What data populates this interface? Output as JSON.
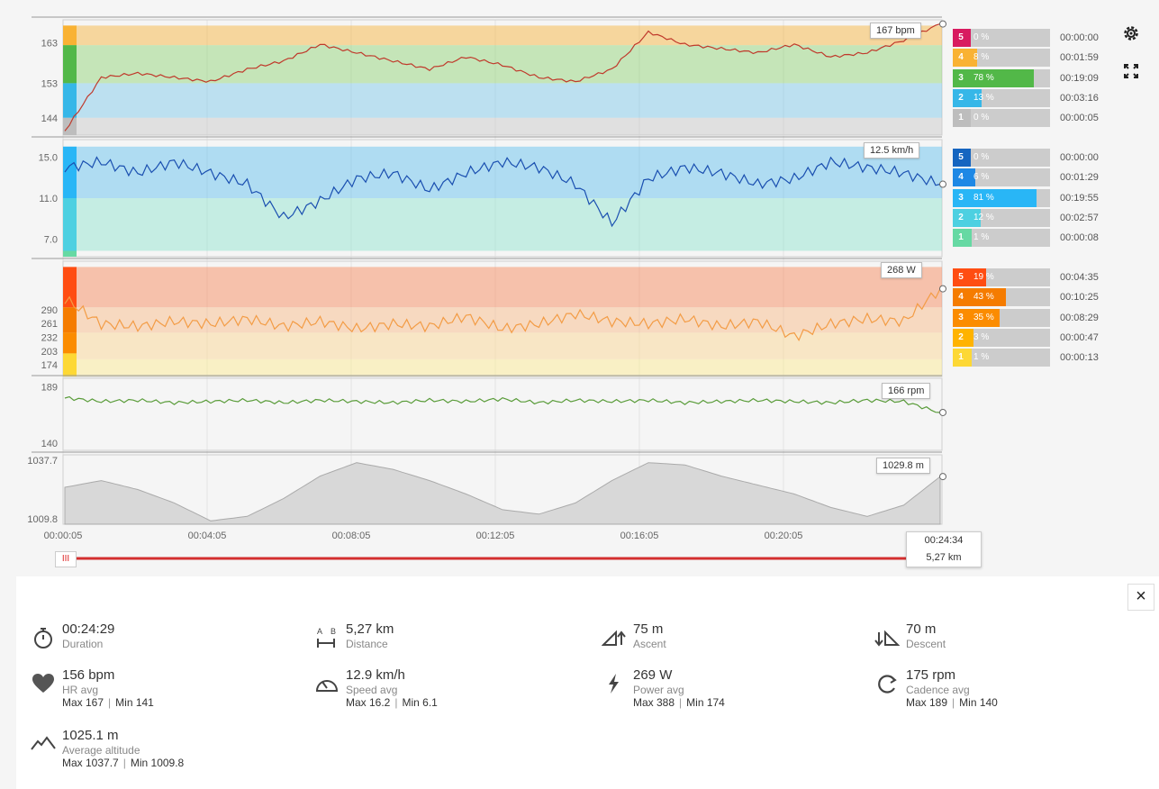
{
  "colors": {
    "hr_zone_5": "#d81b60",
    "hr_zone_4": "#f9b233",
    "hr_zone_3": "#52b848",
    "hr_zone_2": "#36b7e8",
    "hr_zone_1": "#bdbdbd",
    "speed_zone_5": "#1565c0",
    "speed_zone_4": "#1e88e5",
    "speed_zone_3": "#29b6f6",
    "speed_zone_2": "#4dd0e1",
    "speed_zone_1": "#66d9a3",
    "power_zone_5": "#ff4d12",
    "power_zone_4": "#f57c00",
    "power_zone_3": "#fb8c00",
    "power_zone_2": "#ffb300",
    "power_zone_1": "#fdd835",
    "hr_line": "#c0392b",
    "speed_line": "#1a4fb0",
    "power_line": "#f39c45",
    "cadence_line": "#5a9c3a",
    "altitude_fill": "#d8d8d8",
    "timeline": "#d32f2f"
  },
  "icons": {
    "settings": "gear-icon",
    "fullscreen": "expand-icon",
    "close": "close-icon",
    "duration": "stopwatch-icon",
    "distance": "distance-icon",
    "ascent": "ascent-icon",
    "descent": "descent-icon",
    "hr": "heart-icon",
    "speed": "speedometer-icon",
    "power": "lightning-icon",
    "cadence": "cadence-icon",
    "altitude": "mountain-icon"
  },
  "chart_data": [
    {
      "type": "line",
      "title": "",
      "ylabel": "",
      "yticks": [
        "163",
        "153",
        "144"
      ],
      "ylim": [
        140,
        168
      ],
      "current_label": "167 bpm",
      "zones": [
        {
          "zone": "5",
          "percent": "0 %",
          "time": "00:00:00",
          "fraction": 0.0
        },
        {
          "zone": "4",
          "percent": "8 %",
          "time": "00:01:59",
          "fraction": 0.08
        },
        {
          "zone": "3",
          "percent": "78 %",
          "time": "00:19:09",
          "fraction": 0.78
        },
        {
          "zone": "2",
          "percent": "13 %",
          "time": "00:03:16",
          "fraction": 0.13
        },
        {
          "zone": "1",
          "percent": "0 %",
          "time": "00:00:05",
          "fraction": 0.0
        }
      ],
      "x": [
        0,
        1,
        2,
        3,
        4,
        5,
        6,
        7,
        8,
        9,
        10,
        11,
        12,
        13,
        14,
        15,
        16,
        17,
        18,
        19,
        20,
        21,
        22,
        23,
        24
      ],
      "values": [
        141,
        154,
        155,
        154,
        153,
        156,
        158,
        162,
        160,
        158,
        156,
        159,
        157,
        154,
        153,
        156,
        165,
        162,
        161,
        160,
        162,
        159,
        160,
        163,
        167
      ]
    },
    {
      "type": "line",
      "title": "",
      "yticks": [
        "15.0",
        "11.0",
        "7.0"
      ],
      "ylim": [
        6.0,
        16.5
      ],
      "current_label": "12.5 km/h",
      "zones": [
        {
          "zone": "5",
          "percent": "0 %",
          "time": "00:00:00",
          "fraction": 0.0
        },
        {
          "zone": "4",
          "percent": "6 %",
          "time": "00:01:29",
          "fraction": 0.06
        },
        {
          "zone": "3",
          "percent": "81 %",
          "time": "00:19:55",
          "fraction": 0.81
        },
        {
          "zone": "2",
          "percent": "12 %",
          "time": "00:02:57",
          "fraction": 0.12
        },
        {
          "zone": "1",
          "percent": "1 %",
          "time": "00:00:08",
          "fraction": 0.01
        }
      ],
      "x": [
        0,
        1,
        2,
        3,
        4,
        5,
        6,
        7,
        8,
        9,
        10,
        11,
        12,
        13,
        14,
        15,
        16,
        17,
        18,
        19,
        20,
        21,
        22,
        23,
        24
      ],
      "values": [
        14.0,
        14.5,
        13.5,
        14.5,
        13.5,
        12.5,
        9.5,
        11.0,
        13.0,
        13.5,
        12.0,
        13.5,
        14.5,
        14.0,
        12.5,
        9.0,
        13.0,
        14.0,
        13.5,
        12.5,
        13.0,
        14.5,
        14.0,
        13.5,
        12.5
      ]
    },
    {
      "type": "line",
      "title": "",
      "yticks": [
        "290",
        "261",
        "232",
        "203",
        "174"
      ],
      "ylim": [
        165,
        395
      ],
      "current_label": "268 W",
      "zones": [
        {
          "zone": "5",
          "percent": "19 %",
          "time": "00:04:35",
          "fraction": 0.19
        },
        {
          "zone": "4",
          "percent": "43 %",
          "time": "00:10:25",
          "fraction": 0.43
        },
        {
          "zone": "3",
          "percent": "35 %",
          "time": "00:08:29",
          "fraction": 0.35
        },
        {
          "zone": "2",
          "percent": "3 %",
          "time": "00:00:47",
          "fraction": 0.03
        },
        {
          "zone": "1",
          "percent": "1 %",
          "time": "00:00:13",
          "fraction": 0.01
        }
      ],
      "x": [
        0,
        1,
        2,
        3,
        4,
        5,
        6,
        7,
        8,
        9,
        10,
        11,
        12,
        13,
        14,
        15,
        16,
        17,
        18,
        19,
        20,
        21,
        22,
        23,
        24
      ],
      "values": [
        320,
        270,
        265,
        275,
        270,
        280,
        265,
        275,
        260,
        270,
        265,
        285,
        260,
        270,
        290,
        275,
        270,
        280,
        265,
        275,
        245,
        270,
        280,
        275,
        340
      ]
    },
    {
      "type": "line",
      "title": "",
      "yticks": [
        "189",
        "140"
      ],
      "ylim": [
        135,
        194
      ],
      "current_label": "166 rpm",
      "x": [
        0,
        1,
        2,
        3,
        4,
        5,
        6,
        7,
        8,
        9,
        10,
        11,
        12,
        13,
        14,
        15,
        16,
        17,
        18,
        19,
        20,
        21,
        22,
        23,
        24
      ],
      "values": [
        178,
        175,
        176,
        174,
        175,
        176,
        174,
        176,
        175,
        174,
        176,
        175,
        177,
        174,
        176,
        175,
        176,
        174,
        175,
        176,
        175,
        174,
        176,
        175,
        166
      ]
    },
    {
      "type": "area",
      "title": "",
      "yticks": [
        "1037.7",
        "1009.8"
      ],
      "ylim": [
        1008.5,
        1039.5
      ],
      "current_label": "1029.8 m",
      "xticks": [
        "00:00:05",
        "00:04:05",
        "00:08:05",
        "00:12:05",
        "00:16:05",
        "00:20:05"
      ],
      "x": [
        0,
        1,
        2,
        3,
        4,
        5,
        6,
        7,
        8,
        9,
        10,
        11,
        12,
        13,
        14,
        15,
        16,
        17,
        18,
        19,
        20,
        21,
        22,
        23,
        24
      ],
      "values": [
        1025,
        1028,
        1024,
        1018,
        1010,
        1012,
        1020,
        1030,
        1036,
        1033,
        1028,
        1022,
        1015,
        1013,
        1018,
        1028,
        1036,
        1035,
        1030,
        1026,
        1022,
        1016,
        1012,
        1017,
        1029.8
      ]
    }
  ],
  "timeline": {
    "time": "00:24:34",
    "distance": "5,27 km",
    "handle_glyph": "III"
  },
  "stats": {
    "duration": {
      "value": "00:24:29",
      "label": "Duration"
    },
    "distance": {
      "value": "5,27 km",
      "label": "Distance",
      "ab_a": "A",
      "ab_b": "B"
    },
    "ascent": {
      "value": "75 m",
      "label": "Ascent"
    },
    "descent": {
      "value": "70 m",
      "label": "Descent"
    },
    "hr": {
      "value": "156 bpm",
      "label": "HR avg",
      "max": "Max 167",
      "min": "Min 141"
    },
    "speed": {
      "value": "12.9 km/h",
      "label": "Speed avg",
      "max": "Max 16.2",
      "min": "Min 6.1"
    },
    "power": {
      "value": "269 W",
      "label": "Power avg",
      "max": "Max 388",
      "min": "Min 174"
    },
    "cadence": {
      "value": "175 rpm",
      "label": "Cadence avg",
      "max": "Max 189",
      "min": "Min 140"
    },
    "altitude": {
      "value": "1025.1 m",
      "label": "Average altitude",
      "max": "Max 1037.7",
      "min": "Min 1009.8"
    }
  },
  "close_glyph": "×",
  "separator": "|"
}
